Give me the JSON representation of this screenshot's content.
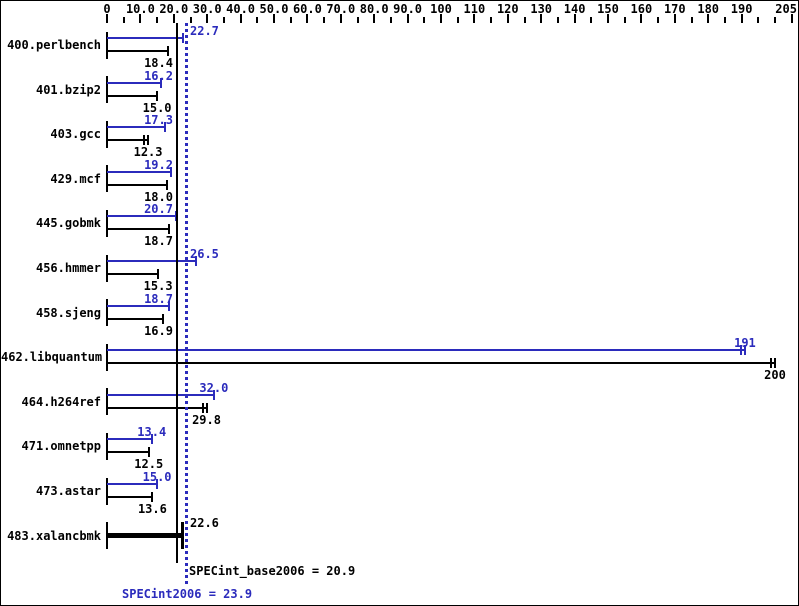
{
  "chart_data": {
    "type": "bar",
    "orientation": "horizontal",
    "title": "",
    "x_axis": {
      "min": 0,
      "max": 205,
      "labeled_ticks": [
        {
          "value": 0,
          "label": "0"
        },
        {
          "value": 10,
          "label": "10.0"
        },
        {
          "value": 20,
          "label": "20.0"
        },
        {
          "value": 30,
          "label": "30.0"
        },
        {
          "value": 40,
          "label": "40.0"
        },
        {
          "value": 50,
          "label": "50.0"
        },
        {
          "value": 60,
          "label": "60.0"
        },
        {
          "value": 70,
          "label": "70.0"
        },
        {
          "value": 80,
          "label": "80.0"
        },
        {
          "value": 90,
          "label": "90.0"
        },
        {
          "value": 100,
          "label": "100"
        },
        {
          "value": 110,
          "label": "110"
        },
        {
          "value": 120,
          "label": "120"
        },
        {
          "value": 130,
          "label": "130"
        },
        {
          "value": 140,
          "label": "140"
        },
        {
          "value": 150,
          "label": "150"
        },
        {
          "value": 160,
          "label": "160"
        },
        {
          "value": 170,
          "label": "170"
        },
        {
          "value": 180,
          "label": "180"
        },
        {
          "value": 190,
          "label": "190"
        },
        {
          "value": 205,
          "label": "205"
        }
      ],
      "minor_ticks": [
        5,
        15,
        25,
        35,
        45,
        55,
        65,
        75,
        85,
        95,
        105,
        115,
        125,
        135,
        145,
        155,
        165,
        175,
        185,
        195,
        200
      ]
    },
    "series": [
      {
        "name": "peak (SPECint2006)",
        "color_key": "peak"
      },
      {
        "name": "base (SPECint_base2006)",
        "color_key": "base"
      }
    ],
    "benchmarks": [
      {
        "name": "400.perlbench",
        "peak": 22.7,
        "peak_label": "22.7",
        "base": 18.4,
        "base_label": "18.4"
      },
      {
        "name": "401.bzip2",
        "peak": 16.2,
        "peak_label": "16.2",
        "base": 15.0,
        "base_label": "15.0"
      },
      {
        "name": "403.gcc",
        "peak": 17.3,
        "peak_label": "17.3",
        "base": 12.3,
        "base_label": "12.3",
        "base_run_spread": true
      },
      {
        "name": "429.mcf",
        "peak": 19.2,
        "peak_label": "19.2",
        "base": 18.0,
        "base_label": "18.0"
      },
      {
        "name": "445.gobmk",
        "peak": 20.7,
        "peak_label": "20.7",
        "base": 18.7,
        "base_label": "18.7"
      },
      {
        "name": "456.hmmer",
        "peak": 26.5,
        "peak_label": "26.5",
        "base": 15.3,
        "base_label": "15.3"
      },
      {
        "name": "458.sjeng",
        "peak": 18.7,
        "peak_label": "18.7",
        "base": 16.9,
        "base_label": "16.9"
      },
      {
        "name": "462.libquantum",
        "peak": 191,
        "peak_label": "191",
        "base": 200,
        "base_label": "200",
        "peak_run_spread": true,
        "base_run_spread": true
      },
      {
        "name": "464.h264ref",
        "peak": 32.0,
        "peak_label": "32.0",
        "base": 29.8,
        "base_label": "29.8",
        "base_run_spread": true
      },
      {
        "name": "471.omnetpp",
        "peak": 13.4,
        "peak_label": "13.4",
        "base": 12.5,
        "base_label": "12.5"
      },
      {
        "name": "473.astar",
        "peak": 15.0,
        "peak_label": "15.0",
        "base": 13.6,
        "base_label": "13.6"
      },
      {
        "name": "483.xalancbmk",
        "single": 22.6,
        "single_label": "22.6"
      }
    ],
    "means": {
      "base": {
        "value": 20.9,
        "label": "SPECint_base2006 = 20.9"
      },
      "peak": {
        "value": 23.9,
        "label": "SPECint2006 = 23.9"
      }
    },
    "colors": {
      "peak": "#2b2bbc",
      "base": "#000000",
      "background": "#ffffff"
    }
  }
}
